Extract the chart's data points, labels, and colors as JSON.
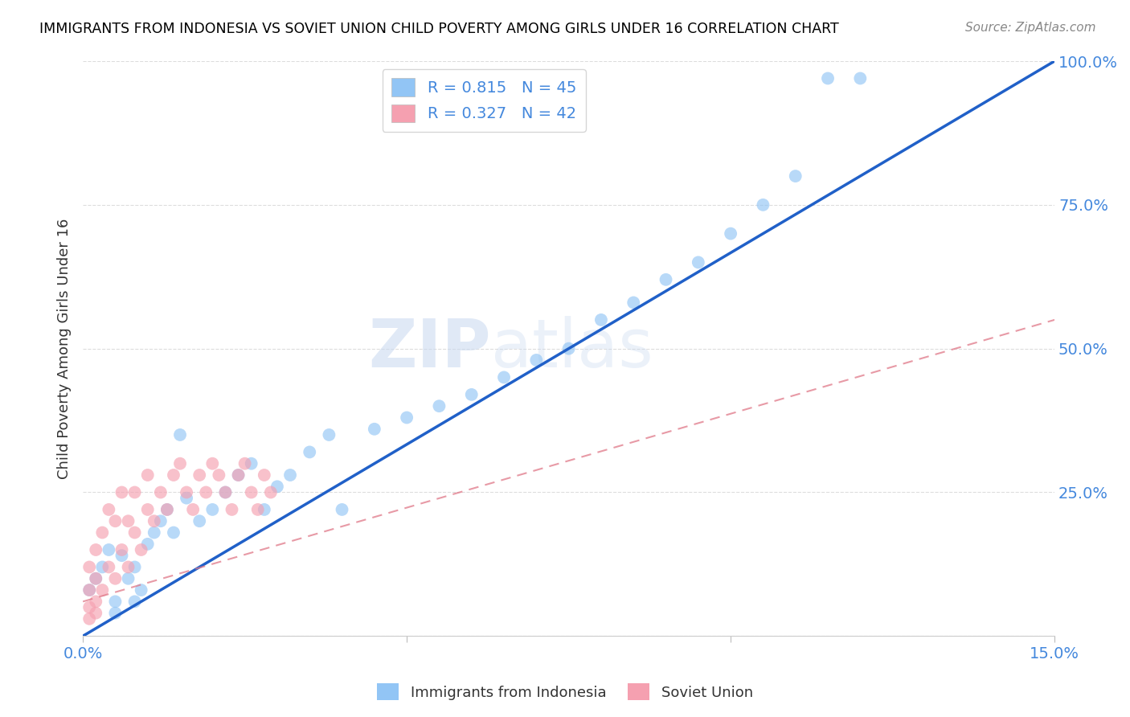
{
  "title": "IMMIGRANTS FROM INDONESIA VS SOVIET UNION CHILD POVERTY AMONG GIRLS UNDER 16 CORRELATION CHART",
  "source": "Source: ZipAtlas.com",
  "ylabel_label": "Child Poverty Among Girls Under 16",
  "legend_label1": "Immigrants from Indonesia",
  "legend_label2": "Soviet Union",
  "R1": 0.815,
  "N1": 45,
  "R2": 0.327,
  "N2": 42,
  "xmin": 0.0,
  "xmax": 0.15,
  "ymin": 0.0,
  "ymax": 1.0,
  "color_blue": "#92C5F5",
  "color_pink": "#F5A0B0",
  "line_blue": "#2060C8",
  "line_pink": "#E07888",
  "watermark_zip": "ZIP",
  "watermark_atlas": "atlas",
  "indo_x": [
    0.001,
    0.002,
    0.003,
    0.004,
    0.005,
    0.006,
    0.007,
    0.008,
    0.009,
    0.01,
    0.011,
    0.012,
    0.013,
    0.014,
    0.016,
    0.018,
    0.02,
    0.022,
    0.024,
    0.026,
    0.028,
    0.03,
    0.032,
    0.035,
    0.038,
    0.04,
    0.045,
    0.05,
    0.055,
    0.06,
    0.065,
    0.07,
    0.075,
    0.08,
    0.085,
    0.09,
    0.095,
    0.1,
    0.105,
    0.11,
    0.115,
    0.12,
    0.005,
    0.008,
    0.015
  ],
  "indo_y": [
    0.08,
    0.1,
    0.12,
    0.15,
    0.06,
    0.14,
    0.1,
    0.12,
    0.08,
    0.16,
    0.18,
    0.2,
    0.22,
    0.18,
    0.24,
    0.2,
    0.22,
    0.25,
    0.28,
    0.3,
    0.22,
    0.26,
    0.28,
    0.32,
    0.35,
    0.22,
    0.36,
    0.38,
    0.4,
    0.42,
    0.45,
    0.48,
    0.5,
    0.55,
    0.58,
    0.62,
    0.65,
    0.7,
    0.75,
    0.8,
    0.97,
    0.97,
    0.04,
    0.06,
    0.35
  ],
  "soviet_x": [
    0.001,
    0.001,
    0.001,
    0.002,
    0.002,
    0.002,
    0.003,
    0.003,
    0.004,
    0.004,
    0.005,
    0.005,
    0.006,
    0.006,
    0.007,
    0.007,
    0.008,
    0.008,
    0.009,
    0.01,
    0.01,
    0.011,
    0.012,
    0.013,
    0.014,
    0.015,
    0.016,
    0.017,
    0.018,
    0.019,
    0.02,
    0.021,
    0.022,
    0.023,
    0.024,
    0.025,
    0.026,
    0.027,
    0.028,
    0.029,
    0.001,
    0.002
  ],
  "soviet_y": [
    0.05,
    0.08,
    0.12,
    0.06,
    0.1,
    0.15,
    0.08,
    0.18,
    0.12,
    0.22,
    0.1,
    0.2,
    0.15,
    0.25,
    0.12,
    0.2,
    0.18,
    0.25,
    0.15,
    0.22,
    0.28,
    0.2,
    0.25,
    0.22,
    0.28,
    0.3,
    0.25,
    0.22,
    0.28,
    0.25,
    0.3,
    0.28,
    0.25,
    0.22,
    0.28,
    0.3,
    0.25,
    0.22,
    0.28,
    0.25,
    0.03,
    0.04
  ],
  "blue_line_x": [
    0.0,
    0.15
  ],
  "blue_line_y": [
    0.0,
    1.0
  ],
  "pink_line_x": [
    0.0,
    0.15
  ],
  "pink_line_y": [
    0.06,
    0.55
  ]
}
